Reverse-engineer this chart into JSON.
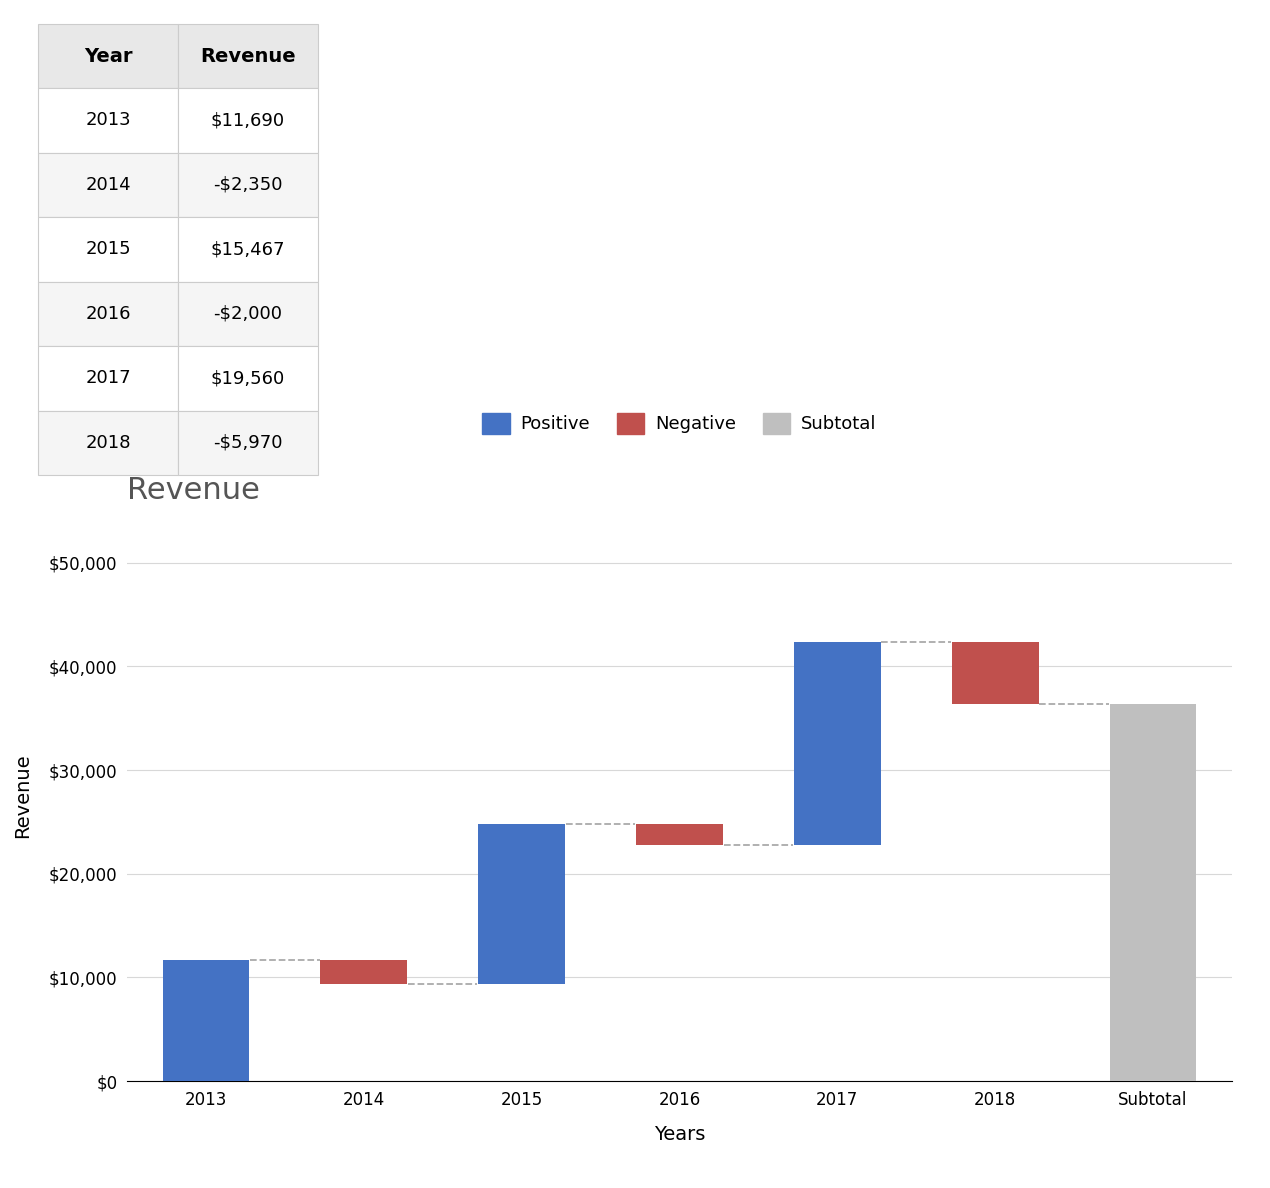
{
  "title": "Revenue",
  "xlabel": "Years",
  "ylabel": "Revenue",
  "categories": [
    "2013",
    "2014",
    "2015",
    "2016",
    "2017",
    "2018",
    "Subtotal"
  ],
  "values": [
    11690,
    -2350,
    15467,
    -2000,
    19560,
    -5970,
    36397
  ],
  "table_years": [
    "2013",
    "2014",
    "2015",
    "2016",
    "2017",
    "2018"
  ],
  "table_revenues": [
    "$11,690",
    "-$2,350",
    "$15,467",
    "-$2,000",
    "$19,560",
    "-$5,970"
  ],
  "color_positive": "#4472C4",
  "color_negative": "#C0504D",
  "color_subtotal": "#BFBFBF",
  "color_connector": "#AAAAAA",
  "ylim": [
    0,
    55000
  ],
  "yticks": [
    0,
    10000,
    20000,
    30000,
    40000,
    50000
  ],
  "ytick_labels": [
    "$0",
    "$10,000",
    "$20,000",
    "$30,000",
    "$40,000",
    "$50,000"
  ],
  "legend_labels": [
    "Positive",
    "Negative",
    "Subtotal"
  ],
  "background_color": "#FFFFFF",
  "grid_color": "#D8D8D8",
  "title_fontsize": 22,
  "label_fontsize": 14,
  "tick_fontsize": 12,
  "legend_fontsize": 13,
  "table_header_color": "#E8E8E8",
  "table_row_color_odd": "#F5F5F5",
  "table_row_color_even": "#FFFFFF",
  "title_color": "#555555"
}
